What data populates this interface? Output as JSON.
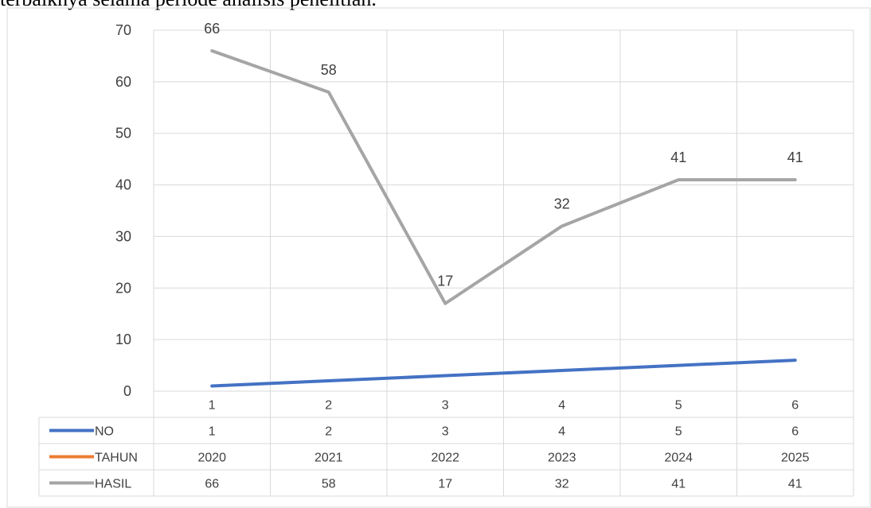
{
  "caption_text": "terbaiknya selama periode analisis penelitian.",
  "chart_data": {
    "type": "line",
    "title": "",
    "xlabel": "",
    "ylabel": "",
    "categories": [
      "1",
      "2",
      "3",
      "4",
      "5",
      "6"
    ],
    "ylim": [
      0,
      70
    ],
    "yticks": [
      0,
      10,
      20,
      30,
      40,
      50,
      60,
      70
    ],
    "grid": true,
    "legend": "data-table-below",
    "series": [
      {
        "name": "NO",
        "values": [
          1,
          2,
          3,
          4,
          5,
          6
        ],
        "color": "#4472C4",
        "labels": false,
        "table": [
          "1",
          "2",
          "3",
          "4",
          "5",
          "6"
        ]
      },
      {
        "name": "TAHUN",
        "values": [
          2020,
          2021,
          2022,
          2023,
          2024,
          2025
        ],
        "color": "#ED7D31",
        "labels": false,
        "table": [
          "2020",
          "2021",
          "2022",
          "2023",
          "2024",
          "2025"
        ]
      },
      {
        "name": "HASIL",
        "values": [
          66,
          58,
          17,
          32,
          41,
          41
        ],
        "color": "#A5A5A5",
        "labels": true,
        "table": [
          "66",
          "58",
          "17",
          "32",
          "41",
          "41"
        ]
      }
    ]
  }
}
